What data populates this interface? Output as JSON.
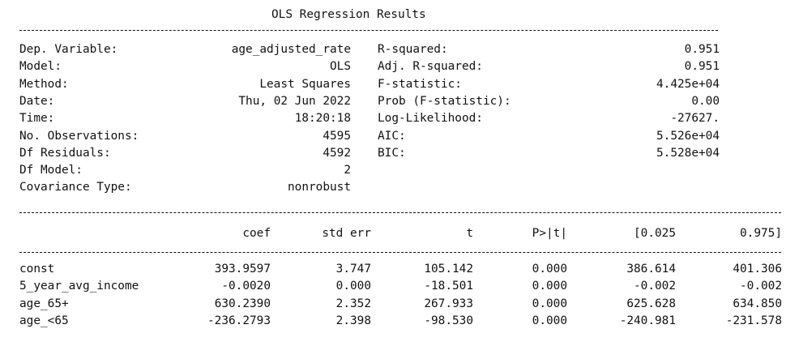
{
  "title": "OLS Regression Results",
  "summary": {
    "left": [
      {
        "label": "Dep. Variable:",
        "value": "age_adjusted_rate"
      },
      {
        "label": "Model:",
        "value": "OLS"
      },
      {
        "label": "Method:",
        "value": "Least Squares"
      },
      {
        "label": "Date:",
        "value": "Thu, 02 Jun 2022"
      },
      {
        "label": "Time:",
        "value": "18:20:18"
      },
      {
        "label": "No. Observations:",
        "value": "4595"
      },
      {
        "label": "Df Residuals:",
        "value": "4592"
      },
      {
        "label": "Df Model:",
        "value": "2"
      },
      {
        "label": "Covariance Type:",
        "value": "nonrobust"
      }
    ],
    "right": [
      {
        "label": "R-squared:",
        "value": "0.951"
      },
      {
        "label": "Adj. R-squared:",
        "value": "0.951"
      },
      {
        "label": "F-statistic:",
        "value": "4.425e+04"
      },
      {
        "label": "Prob (F-statistic):",
        "value": "0.00"
      },
      {
        "label": "Log-Likelihood:",
        "value": "-27627."
      },
      {
        "label": "AIC:",
        "value": "5.526e+04"
      },
      {
        "label": "BIC:",
        "value": "5.528e+04"
      }
    ]
  },
  "coef_table": {
    "headers": [
      "coef",
      "std err",
      "t",
      "P>|t|",
      "[0.025",
      "0.975]"
    ],
    "rows": [
      {
        "name": "const",
        "values": [
          "393.9597",
          "3.747",
          "105.142",
          "0.000",
          "386.614",
          "401.306"
        ]
      },
      {
        "name": "5_year_avg_income",
        "values": [
          "-0.0020",
          "0.000",
          "-18.501",
          "0.000",
          "-0.002",
          "-0.002"
        ]
      },
      {
        "name": "age_65+",
        "values": [
          "630.2390",
          "2.352",
          "267.933",
          "0.000",
          "625.628",
          "634.850"
        ]
      },
      {
        "name": "age_<65",
        "values": [
          "-236.2793",
          "2.398",
          "-98.530",
          "0.000",
          "-240.981",
          "-231.578"
        ]
      }
    ]
  }
}
